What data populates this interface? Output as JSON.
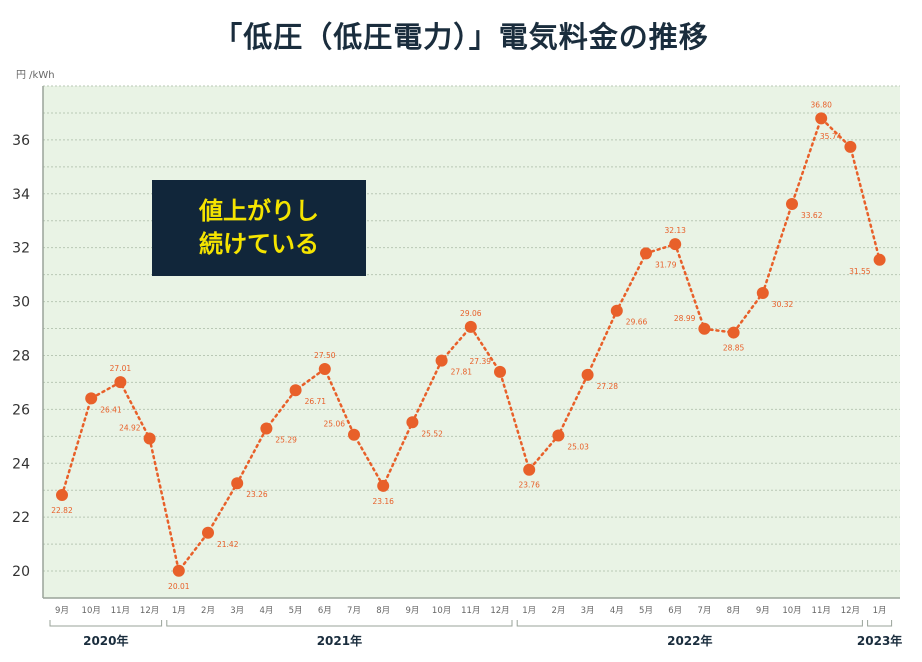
{
  "chart_data": {
    "type": "line",
    "title": "「低圧（低圧電力）」電気料金の推移",
    "ylabel": "円 /kWh",
    "ylim": [
      19,
      38
    ],
    "yticks": [
      20,
      22,
      24,
      26,
      28,
      30,
      32,
      34,
      36
    ],
    "grid": true,
    "categories": [
      "9月",
      "10月",
      "11月",
      "12月",
      "1月",
      "2月",
      "3月",
      "4月",
      "5月",
      "6月",
      "7月",
      "8月",
      "9月",
      "10月",
      "11月",
      "12月",
      "1月",
      "2月",
      "3月",
      "4月",
      "5月",
      "6月",
      "7月",
      "8月",
      "9月",
      "10月",
      "11月",
      "12月",
      "1月"
    ],
    "values": [
      22.82,
      26.41,
      27.01,
      24.92,
      20.01,
      21.42,
      23.26,
      25.29,
      26.71,
      27.5,
      25.06,
      23.16,
      25.52,
      27.81,
      29.06,
      27.39,
      23.76,
      25.03,
      27.28,
      29.66,
      31.79,
      32.13,
      28.99,
      28.85,
      30.32,
      33.62,
      36.8,
      35.74,
      31.55
    ],
    "data_labels": [
      "22.82",
      "26.41",
      "27.01",
      "24.92",
      "20.01",
      "21.42",
      "23.26",
      "25.29",
      "26.71",
      "27.50",
      "25.06",
      "23.16",
      "25.52",
      "27.81",
      "29.06",
      "27.39",
      "23.76",
      "25.03",
      "27.28",
      "29.66",
      "31.79",
      "32.13",
      "28.99",
      "28.85",
      "30.32",
      "33.62",
      "36.80",
      "35.74",
      "31.55"
    ],
    "year_groups": [
      {
        "label": "2020年",
        "start": 0,
        "end": 3
      },
      {
        "label": "2021年",
        "start": 4,
        "end": 15
      },
      {
        "label": "2022年",
        "start": 16,
        "end": 27
      },
      {
        "label": "2023年",
        "start": 28,
        "end": 28
      }
    ],
    "annotation": [
      "値上がりし",
      "続けている"
    ],
    "colors": {
      "line": "#e8602a",
      "plot_background": "#e9f3e5",
      "grid": "#b9c8b5",
      "callout_background": "#11263a",
      "callout_text": "#f5e400"
    }
  }
}
